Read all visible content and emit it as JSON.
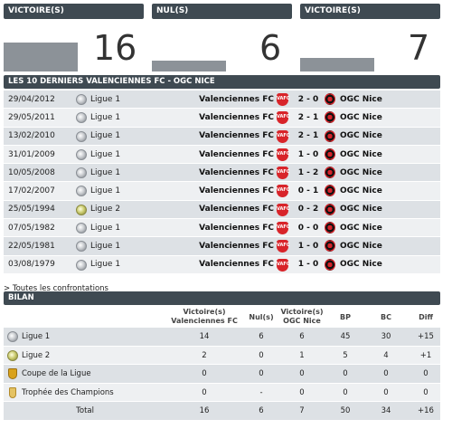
{
  "stats": {
    "home": {
      "label": "VICTOIRE(S)",
      "value": "16",
      "share": 0.55
    },
    "draw": {
      "label": "NUL(S)",
      "value": "6",
      "share": 0.2
    },
    "away": {
      "label": "VICTOIRE(S)",
      "value": "7",
      "share": 0.25
    }
  },
  "matches_header": "LES 10 DERNIERS VALENCIENNES FC - OGC NICE",
  "home_team": "Valenciennes FC",
  "away_team": "OGC Nice",
  "home_logo_text": "VAFC",
  "matches": [
    {
      "date": "29/04/2012",
      "competition": "Ligue 1",
      "comp_icon": "ligue1-icon",
      "score": "2 - 0"
    },
    {
      "date": "29/05/2011",
      "competition": "Ligue 1",
      "comp_icon": "ligue1-icon",
      "score": "2 - 1"
    },
    {
      "date": "13/02/2010",
      "competition": "Ligue 1",
      "comp_icon": "ligue1-icon",
      "score": "2 - 1"
    },
    {
      "date": "31/01/2009",
      "competition": "Ligue 1",
      "comp_icon": "ligue1-icon",
      "score": "1 - 0"
    },
    {
      "date": "10/05/2008",
      "competition": "Ligue 1",
      "comp_icon": "ligue1-icon",
      "score": "1 - 2"
    },
    {
      "date": "17/02/2007",
      "competition": "Ligue 1",
      "comp_icon": "ligue1-icon",
      "score": "0 - 1"
    },
    {
      "date": "25/05/1994",
      "competition": "Ligue 2",
      "comp_icon": "ligue2-icon",
      "score": "0 - 2"
    },
    {
      "date": "07/05/1982",
      "competition": "Ligue 1",
      "comp_icon": "ligue1-icon",
      "score": "0 - 0"
    },
    {
      "date": "22/05/1981",
      "competition": "Ligue 1",
      "comp_icon": "ligue1-icon",
      "score": "1 - 0"
    },
    {
      "date": "03/08/1979",
      "competition": "Ligue 1",
      "comp_icon": "ligue1-icon",
      "score": "1 - 0"
    }
  ],
  "all_link": "> Toutes les confrontations",
  "bilan_header": "BILAN",
  "bilan_columns": {
    "home_wins": "Victoire(s) Valenciennes FC",
    "draws": "Nul(s)",
    "away_wins": "Victoire(s) OGC Nice",
    "bp": "BP",
    "bc": "BC",
    "diff": "Diff"
  },
  "bilan_rows": [
    {
      "name": "Ligue 1",
      "icon": "ligue1-icon",
      "home_wins": "14",
      "draws": "6",
      "away_wins": "6",
      "bp": "45",
      "bc": "30",
      "diff": "+15"
    },
    {
      "name": "Ligue 2",
      "icon": "ligue2-icon",
      "home_wins": "2",
      "draws": "0",
      "away_wins": "1",
      "bp": "5",
      "bc": "4",
      "diff": "+1"
    },
    {
      "name": "Coupe de la Ligue",
      "icon": "cup-icon",
      "home_wins": "0",
      "draws": "0",
      "away_wins": "0",
      "bp": "0",
      "bc": "0",
      "diff": "0"
    },
    {
      "name": "Trophée des Champions",
      "icon": "trophy-icon",
      "home_wins": "0",
      "draws": "-",
      "away_wins": "0",
      "bp": "0",
      "bc": "0",
      "diff": "0"
    }
  ],
  "bilan_total": {
    "label": "Total",
    "home_wins": "16",
    "draws": "6",
    "away_wins": "7",
    "bp": "50",
    "bc": "34",
    "diff": "+16"
  }
}
